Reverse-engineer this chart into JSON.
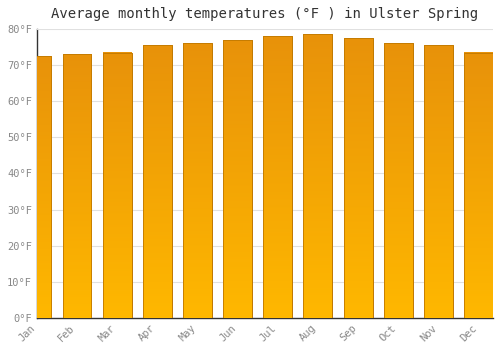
{
  "title": "Average monthly temperatures (°F ) in Ulster Spring",
  "categories": [
    "Jan",
    "Feb",
    "Mar",
    "Apr",
    "May",
    "Jun",
    "Jul",
    "Aug",
    "Sep",
    "Oct",
    "Nov",
    "Dec"
  ],
  "values": [
    72.5,
    73.0,
    73.5,
    75.5,
    76.0,
    77.0,
    78.0,
    78.5,
    77.5,
    76.0,
    75.5,
    73.5
  ],
  "bar_color_top": "#E8920A",
  "bar_color_bottom": "#FFB800",
  "bar_edge_color": "#C07800",
  "background_color": "#FFFFFF",
  "grid_color": "#E0E0E0",
  "ylim": [
    0,
    80
  ],
  "yticks": [
    0,
    10,
    20,
    30,
    40,
    50,
    60,
    70,
    80
  ],
  "ytick_labels": [
    "0°F",
    "10°F",
    "20°F",
    "30°F",
    "40°F",
    "50°F",
    "60°F",
    "70°F",
    "80°F"
  ],
  "title_fontsize": 10,
  "tick_fontsize": 7.5,
  "title_color": "#333333",
  "tick_color": "#888888",
  "spine_color": "#333333"
}
